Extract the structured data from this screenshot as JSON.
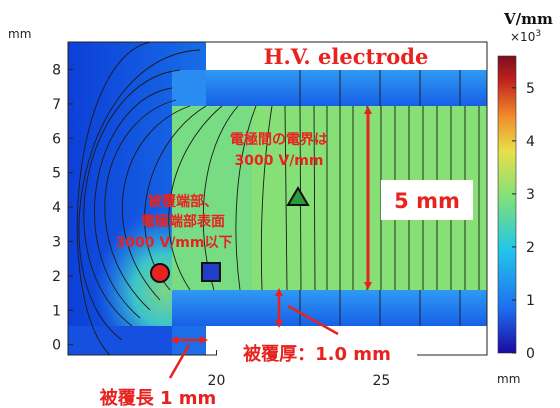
{
  "chart_data": {
    "type": "heatmap",
    "quantity_unit": "V/mm",
    "colorbar": {
      "label": "V/mm",
      "multiplier": "×10",
      "exponent": "3",
      "ticks": [
        {
          "value": 0,
          "label": "0"
        },
        {
          "value": 1,
          "label": "1"
        },
        {
          "value": 2,
          "label": "2"
        },
        {
          "value": 3,
          "label": "3"
        },
        {
          "value": 4,
          "label": "4"
        },
        {
          "value": 5,
          "label": "5"
        }
      ],
      "range": [
        0,
        5.6
      ],
      "colors": [
        "#1a0aa0",
        "#1e6ff0",
        "#22c7e8",
        "#7ee07a",
        "#e8e04a",
        "#f08a2a",
        "#c0201e",
        "#7a0f1e"
      ]
    },
    "x_axis": {
      "unit": "mm",
      "range": [
        15.5,
        28.2
      ],
      "ticks": [
        {
          "value": 20,
          "label": "20"
        },
        {
          "value": 25,
          "label": "25"
        }
      ]
    },
    "y_axis": {
      "unit": "mm",
      "range": [
        -0.3,
        8.8
      ],
      "ticks": [
        {
          "value": 0,
          "label": "0"
        },
        {
          "value": 1,
          "label": "1"
        },
        {
          "value": 2,
          "label": "2"
        },
        {
          "value": 3,
          "label": "3"
        },
        {
          "value": 4,
          "label": "4"
        },
        {
          "value": 5,
          "label": "5"
        },
        {
          "value": 6,
          "label": "6"
        },
        {
          "value": 7,
          "label": "7"
        },
        {
          "value": 8,
          "label": "8"
        }
      ]
    },
    "markers": [
      {
        "shape": "circle",
        "x": 18.6,
        "y": 2.3,
        "color": "#e8231f"
      },
      {
        "shape": "square",
        "x": 19.6,
        "y": 2.3,
        "color": "#1f3fc8"
      },
      {
        "shape": "triangle",
        "x": 22.4,
        "y": 4.3,
        "color": "#2a9a3a"
      }
    ],
    "dimension_annotations": [
      {
        "name": "gap",
        "from": {
          "x": 24.5,
          "y": 1.8
        },
        "to": {
          "x": 24.5,
          "y": 6.8
        },
        "label": "5 mm"
      },
      {
        "name": "coating-thickness",
        "from": {
          "x": 21.9,
          "y": 0.8
        },
        "to": {
          "x": 21.9,
          "y": 1.8
        },
        "label": "被覆厚：1.0 mm"
      },
      {
        "name": "coating-length",
        "from": {
          "x": 19.0,
          "y": 0.4
        },
        "to": {
          "x": 20.0,
          "y": 0.4
        },
        "label": "被覆長 1 mm"
      }
    ],
    "annotations": {
      "electrode": "H.V. electrode",
      "field_between_line1": "電極間の電界は",
      "field_between_line2": "3000 V/mm",
      "coating_end_line1": "被覆端部、",
      "coating_end_line2": "電極端部表面",
      "coating_end_line3": "3000 V/mm以下"
    }
  }
}
